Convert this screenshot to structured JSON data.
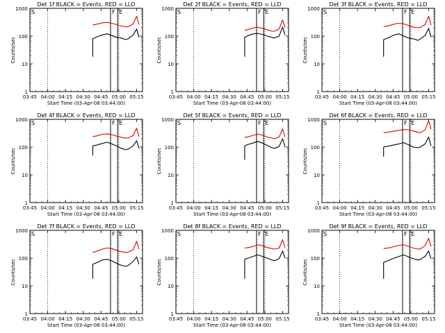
{
  "figure": {
    "background": "#ffffff",
    "colors": {
      "events": "#000000",
      "lld": "#dd0000",
      "axes": "#000000"
    }
  },
  "chart_data": [
    {
      "type": "line",
      "title": "Det 1f BLACK = Events, RED = LLD",
      "xlabel": "Start Time (03-Apr-08 03:44:00)",
      "ylabel": "Counts/sec",
      "x_ticks": [
        "03:45",
        "04:00",
        "04:15",
        "04:30",
        "04:45",
        "05:00",
        "05:15"
      ],
      "y_ticks": [
        "1",
        "10",
        "100",
        "1000"
      ],
      "y_scale": "log",
      "ylim": [
        1,
        1000
      ],
      "markers": {
        "S": "03:45",
        "F": "04:53",
        "E": "04:59"
      },
      "dotted_lines": [
        "04:00",
        "05:00"
      ],
      "series": [
        {
          "color": "#dd0000",
          "x": [
            "04:38",
            "04:42",
            "04:46",
            "04:50",
            "04:54",
            "04:58",
            "05:02",
            "05:06",
            "05:08",
            "05:12",
            "05:15",
            "05:17"
          ],
          "y": [
            250,
            270,
            300,
            310,
            290,
            260,
            230,
            215,
            220,
            270,
            520,
            260
          ]
        },
        {
          "color": "#000000",
          "x": [
            "04:38",
            "04:38",
            "04:42",
            "04:46",
            "04:50",
            "04:54",
            "04:58",
            "05:02",
            "05:06",
            "05:08",
            "05:12",
            "05:15",
            "05:17"
          ],
          "y": [
            18,
            80,
            95,
            110,
            120,
            105,
            90,
            85,
            75,
            80,
            110,
            180,
            90
          ]
        }
      ]
    },
    {
      "type": "line",
      "title": "Det 2f BLACK = Events, RED = LLD",
      "xlabel": "Start Time (03-Apr-08 03:44:00)",
      "ylabel": "Counts/sec",
      "x_ticks": [
        "03:45",
        "04:00",
        "04:15",
        "04:30",
        "04:45",
        "05:00",
        "05:15"
      ],
      "y_ticks": [
        "1",
        "10",
        "100",
        "1000"
      ],
      "y_scale": "log",
      "ylim": [
        1,
        1000
      ],
      "markers": {
        "S": "03:45",
        "F": "04:53",
        "E": "04:59"
      },
      "dotted_lines": [
        "04:00",
        "05:00"
      ],
      "series": [
        {
          "color": "#dd0000",
          "x": [
            "04:43",
            "04:46",
            "04:50",
            "04:54",
            "04:58",
            "05:02",
            "05:06",
            "05:08",
            "05:12",
            "05:15",
            "05:17"
          ],
          "y": [
            160,
            175,
            195,
            210,
            190,
            170,
            150,
            150,
            180,
            380,
            200
          ]
        },
        {
          "color": "#000000",
          "x": [
            "04:43",
            "04:43",
            "04:46",
            "04:50",
            "04:54",
            "04:58",
            "05:02",
            "05:06",
            "05:08",
            "05:12",
            "05:15",
            "05:17"
          ],
          "y": [
            18,
            90,
            105,
            120,
            125,
            115,
            100,
            90,
            85,
            100,
            210,
            110
          ]
        }
      ]
    },
    {
      "type": "line",
      "title": "Det 3f BLACK = Events, RED = LLD",
      "xlabel": "Start Time (03-Apr-08 03:44:00)",
      "ylabel": "Counts/sec",
      "x_ticks": [
        "03:45",
        "04:00",
        "04:15",
        "04:30",
        "04:45",
        "05:00",
        "05:15"
      ],
      "y_ticks": [
        "1",
        "10",
        "100",
        "1000"
      ],
      "y_scale": "log",
      "ylim": [
        1,
        1000
      ],
      "markers": {
        "S": "03:45",
        "F": "04:53",
        "E": "04:59"
      },
      "dotted_lines": [
        "04:00",
        "05:00"
      ],
      "series": [
        {
          "color": "#dd0000",
          "x": [
            "04:37",
            "04:42",
            "04:46",
            "04:50",
            "04:54",
            "04:58",
            "05:02",
            "05:06",
            "05:08",
            "05:12",
            "05:15",
            "05:17"
          ],
          "y": [
            220,
            240,
            270,
            290,
            275,
            240,
            210,
            200,
            205,
            260,
            520,
            250
          ]
        },
        {
          "color": "#000000",
          "x": [
            "04:37",
            "04:37",
            "04:42",
            "04:46",
            "04:50",
            "04:54",
            "04:58",
            "05:02",
            "05:06",
            "05:08",
            "05:12",
            "05:15",
            "05:17"
          ],
          "y": [
            18,
            75,
            90,
            110,
            120,
            100,
            85,
            80,
            70,
            80,
            105,
            190,
            90
          ]
        }
      ]
    },
    {
      "type": "line",
      "title": "Det 4f BLACK = Events, RED = LLD",
      "xlabel": "Start Time (03-Apr-08 03:44:00)",
      "ylabel": "Counts/sec",
      "x_ticks": [
        "03:45",
        "04:00",
        "04:15",
        "04:30",
        "04:45",
        "05:00",
        "05:15"
      ],
      "y_ticks": [
        "1",
        "10",
        "100",
        "1000"
      ],
      "y_scale": "log",
      "ylim": [
        1,
        1000
      ],
      "markers": {
        "S": "03:45",
        "F": "04:53",
        "E": "04:59"
      },
      "dotted_lines": [
        "04:00",
        "05:00"
      ],
      "series": [
        {
          "color": "#dd0000",
          "x": [
            "04:38",
            "04:42",
            "04:46",
            "04:50",
            "04:54",
            "04:58",
            "05:02",
            "05:06",
            "05:08",
            "05:12",
            "05:15",
            "05:17"
          ],
          "y": [
            240,
            255,
            290,
            300,
            280,
            250,
            225,
            210,
            215,
            260,
            480,
            240
          ]
        },
        {
          "color": "#000000",
          "x": [
            "04:38",
            "04:38",
            "04:42",
            "04:46",
            "04:50",
            "04:54",
            "04:58",
            "05:02",
            "05:06",
            "05:08",
            "05:12",
            "05:15",
            "05:17"
          ],
          "y": [
            50,
            110,
            120,
            135,
            150,
            130,
            110,
            90,
            80,
            85,
            110,
            170,
            90
          ]
        }
      ]
    },
    {
      "type": "line",
      "title": "Det 5f BLACK = Events, RED = LLD",
      "xlabel": "Start Time (03-Apr-08 03:44:00)",
      "ylabel": "Counts/sec",
      "x_ticks": [
        "03:45",
        "04:00",
        "04:15",
        "04:30",
        "04:45",
        "05:00",
        "05:15"
      ],
      "y_ticks": [
        "1",
        "10",
        "100",
        "1000"
      ],
      "y_scale": "log",
      "ylim": [
        1,
        1000
      ],
      "markers": {
        "S": "03:45",
        "F": "04:53",
        "E": "04:59"
      },
      "dotted_lines": [
        "04:00",
        "05:00"
      ],
      "series": [
        {
          "color": "#dd0000",
          "x": [
            "04:43",
            "04:46",
            "04:50",
            "04:54",
            "04:58",
            "05:02",
            "05:06",
            "05:08",
            "05:12",
            "05:15",
            "05:17"
          ],
          "y": [
            220,
            235,
            265,
            290,
            270,
            230,
            210,
            200,
            230,
            450,
            230
          ]
        },
        {
          "color": "#000000",
          "x": [
            "04:43",
            "04:43",
            "04:46",
            "04:50",
            "04:54",
            "04:58",
            "05:02",
            "05:06",
            "05:08",
            "05:12",
            "05:15",
            "05:17"
          ],
          "y": [
            35,
            110,
            125,
            140,
            160,
            140,
            115,
            95,
            90,
            105,
            200,
            100
          ]
        }
      ]
    },
    {
      "type": "line",
      "title": "Det 6f BLACK = Events, RED = LLD",
      "xlabel": "Start Time (03-Apr-08 03:44:00)",
      "ylabel": "Counts/sec",
      "x_ticks": [
        "03:45",
        "04:00",
        "04:15",
        "04:30",
        "04:45",
        "05:00",
        "05:15"
      ],
      "y_ticks": [
        "1",
        "10",
        "100",
        "1000"
      ],
      "y_scale": "log",
      "ylim": [
        1,
        1000
      ],
      "markers": {
        "S": "03:45",
        "F": "04:53",
        "E": "04:59"
      },
      "dotted_lines": [
        "04:00",
        "05:00"
      ],
      "series": [
        {
          "color": "#dd0000",
          "x": [
            "04:37",
            "04:42",
            "04:46",
            "04:50",
            "04:54",
            "04:58",
            "05:02",
            "05:06",
            "05:08",
            "05:12",
            "05:15",
            "05:17"
          ],
          "y": [
            330,
            350,
            380,
            400,
            430,
            420,
            380,
            340,
            330,
            420,
            900,
            450
          ]
        },
        {
          "color": "#000000",
          "x": [
            "04:37",
            "04:37",
            "04:42",
            "04:46",
            "04:50",
            "04:54",
            "04:58",
            "05:02",
            "05:06",
            "05:08",
            "05:12",
            "05:15",
            "05:17"
          ],
          "y": [
            45,
            100,
            110,
            120,
            130,
            145,
            120,
            100,
            95,
            100,
            130,
            230,
            110
          ]
        }
      ]
    },
    {
      "type": "line",
      "title": "Det 7f BLACK = Events, RED = LLD",
      "xlabel": "Start Time (03-Apr-08 03:44:00)",
      "ylabel": "Counts/sec",
      "x_ticks": [
        "03:45",
        "04:00",
        "04:15",
        "04:30",
        "04:45",
        "05:00",
        "05:15"
      ],
      "y_ticks": [
        "1",
        "10",
        "100",
        "1000"
      ],
      "y_scale": "log",
      "ylim": [
        1,
        1000
      ],
      "markers": {
        "S": "03:45",
        "F": "04:53",
        "E": "04:59"
      },
      "dotted_lines": [
        "04:00",
        "05:00"
      ],
      "series": [
        {
          "color": "#dd0000",
          "x": [
            "04:38",
            "04:42",
            "04:46",
            "04:50",
            "04:54",
            "04:58",
            "05:02",
            "05:06",
            "05:08",
            "05:12",
            "05:15",
            "05:17"
          ],
          "y": [
            160,
            180,
            210,
            230,
            220,
            190,
            170,
            160,
            165,
            200,
            400,
            210
          ]
        },
        {
          "color": "#000000",
          "x": [
            "04:38",
            "04:38",
            "04:42",
            "04:46",
            "04:50",
            "04:54",
            "04:58",
            "05:02",
            "05:06",
            "05:08",
            "05:12",
            "05:15",
            "05:17"
          ],
          "y": [
            18,
            60,
            70,
            85,
            90,
            80,
            65,
            55,
            50,
            55,
            75,
            110,
            60
          ]
        }
      ]
    },
    {
      "type": "line",
      "title": "Det 8f BLACK = Events, RED = LLD",
      "xlabel": "Start Time (03-Apr-08 03:44:00)",
      "ylabel": "Counts/sec",
      "x_ticks": [
        "03:45",
        "04:00",
        "04:15",
        "04:30",
        "04:45",
        "05:00",
        "05:15"
      ],
      "y_ticks": [
        "1",
        "10",
        "100",
        "1000"
      ],
      "y_scale": "log",
      "ylim": [
        1,
        1000
      ],
      "markers": {
        "S": "03:45",
        "F": "04:53",
        "E": "04:59"
      },
      "dotted_lines": [
        "04:00",
        "05:00"
      ],
      "series": [
        {
          "color": "#dd0000",
          "x": [
            "04:43",
            "04:46",
            "04:50",
            "04:54",
            "04:58",
            "05:02",
            "05:06",
            "05:08",
            "05:12",
            "05:15",
            "05:17"
          ],
          "y": [
            230,
            240,
            260,
            300,
            280,
            240,
            220,
            210,
            230,
            460,
            240
          ]
        },
        {
          "color": "#000000",
          "x": [
            "04:43",
            "04:43",
            "04:46",
            "04:50",
            "04:54",
            "04:58",
            "05:02",
            "05:06",
            "05:08",
            "05:12",
            "05:15",
            "05:17"
          ],
          "y": [
            18,
            90,
            100,
            115,
            130,
            115,
            100,
            85,
            80,
            95,
            180,
            100
          ]
        }
      ]
    },
    {
      "type": "line",
      "title": "Det 9f BLACK = Events, RED = LLD",
      "xlabel": "Start Time (03-Apr-08 03:44:00)",
      "ylabel": "Counts/sec",
      "x_ticks": [
        "03:45",
        "04:00",
        "04:15",
        "04:30",
        "04:45",
        "05:00",
        "05:15"
      ],
      "y_ticks": [
        "1",
        "10",
        "100",
        "1000"
      ],
      "y_scale": "log",
      "ylim": [
        1,
        1000
      ],
      "markers": {
        "S": "03:45",
        "F": "04:53",
        "E": "04:59"
      },
      "dotted_lines": [
        "04:00",
        "05:00"
      ],
      "series": [
        {
          "color": "#dd0000",
          "x": [
            "04:37",
            "04:42",
            "04:46",
            "04:50",
            "04:54",
            "04:58",
            "05:02",
            "05:06",
            "05:08",
            "05:12",
            "05:15",
            "05:17"
          ],
          "y": [
            220,
            235,
            260,
            290,
            300,
            260,
            230,
            210,
            215,
            280,
            520,
            260
          ]
        },
        {
          "color": "#000000",
          "x": [
            "04:37",
            "04:37",
            "04:42",
            "04:46",
            "04:50",
            "04:54",
            "04:58",
            "05:02",
            "05:06",
            "05:08",
            "05:12",
            "05:15",
            "05:17"
          ],
          "y": [
            18,
            70,
            85,
            100,
            115,
            130,
            110,
            95,
            85,
            90,
            115,
            180,
            95
          ]
        }
      ]
    }
  ]
}
